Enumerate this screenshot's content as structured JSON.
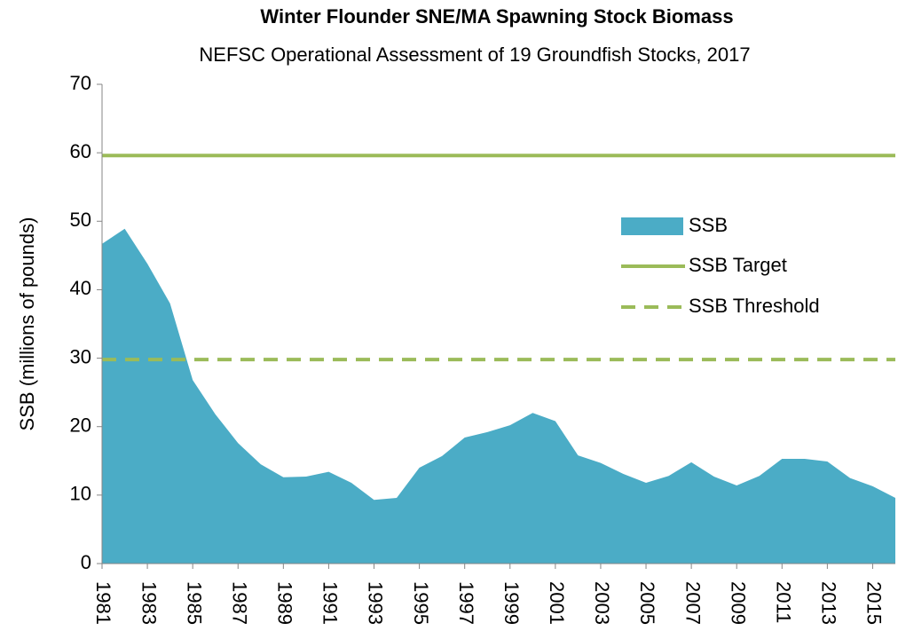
{
  "chart_data": {
    "type": "area",
    "title": "Winter Flounder SNE/MA Spawning Stock Biomass",
    "subtitle": "NEFSC Operational Assessment of 19 Groundfish Stocks, 2017",
    "y_label": "SSB (millions of pounds)",
    "x": [
      1981,
      1982,
      1983,
      1984,
      1985,
      1986,
      1987,
      1988,
      1989,
      1990,
      1991,
      1992,
      1993,
      1994,
      1995,
      1996,
      1997,
      1998,
      1999,
      2000,
      2001,
      2002,
      2003,
      2004,
      2005,
      2006,
      2007,
      2008,
      2009,
      2010,
      2011,
      2012,
      2013,
      2014,
      2015,
      2016
    ],
    "series": [
      {
        "name": "SSB",
        "color": "#4bacc6",
        "values": [
          46.7,
          48.9,
          43.8,
          38.0,
          26.8,
          21.8,
          17.6,
          14.5,
          12.6,
          12.7,
          13.4,
          11.8,
          9.3,
          9.6,
          14.0,
          15.7,
          18.4,
          19.2,
          20.2,
          22.0,
          20.8,
          15.8,
          14.7,
          13.1,
          11.8,
          12.8,
          14.8,
          12.7,
          11.4,
          12.8,
          15.3,
          15.3,
          14.9,
          12.5,
          11.3,
          9.6
        ]
      }
    ],
    "reference_lines": [
      {
        "name": "SSB Target",
        "color": "#9bbb59",
        "value": 59.6,
        "style": "solid"
      },
      {
        "name": "SSB Threshold",
        "color": "#9bbb59",
        "value": 29.8,
        "style": "dashed"
      }
    ],
    "xlim": [
      1981,
      2016
    ],
    "xticks": [
      1981,
      1983,
      1985,
      1987,
      1989,
      1991,
      1993,
      1995,
      1997,
      1999,
      2001,
      2003,
      2005,
      2007,
      2009,
      2011,
      2013,
      2015
    ],
    "ylim": [
      0,
      70
    ],
    "yticks": [
      0,
      10,
      20,
      30,
      40,
      50,
      60,
      70
    ],
    "grid": false,
    "legend": "upper right"
  }
}
